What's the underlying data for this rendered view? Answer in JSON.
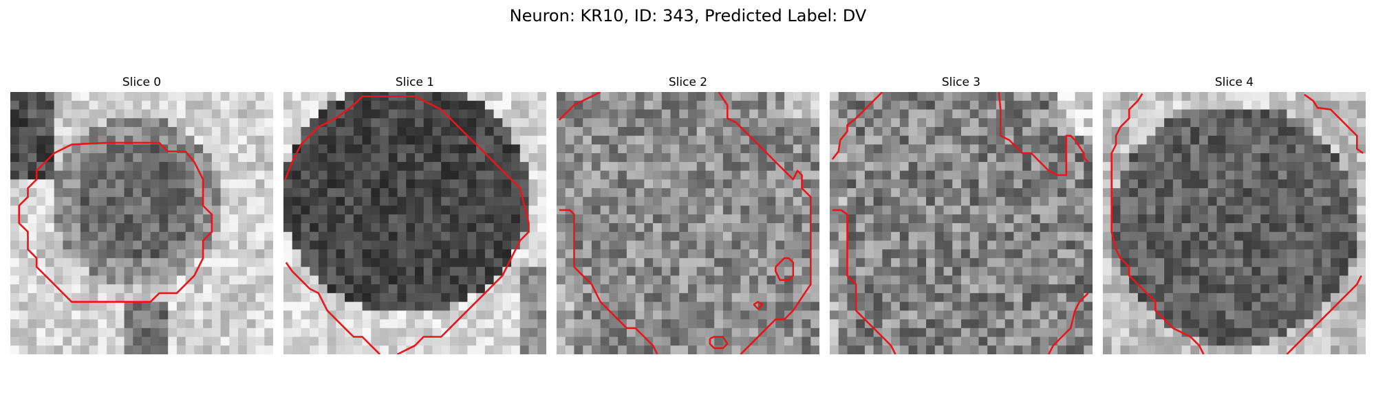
{
  "figure": {
    "title": "Neuron: KR10, ID: 343, Predicted Label: DV"
  },
  "panels": [
    {
      "title": "Slice 0"
    },
    {
      "title": "Slice 1"
    },
    {
      "title": "Slice 2"
    },
    {
      "title": "Slice 3"
    },
    {
      "title": "Slice 4"
    }
  ],
  "colors": {
    "contour": "#e8151b",
    "background": "#ffffff"
  }
}
